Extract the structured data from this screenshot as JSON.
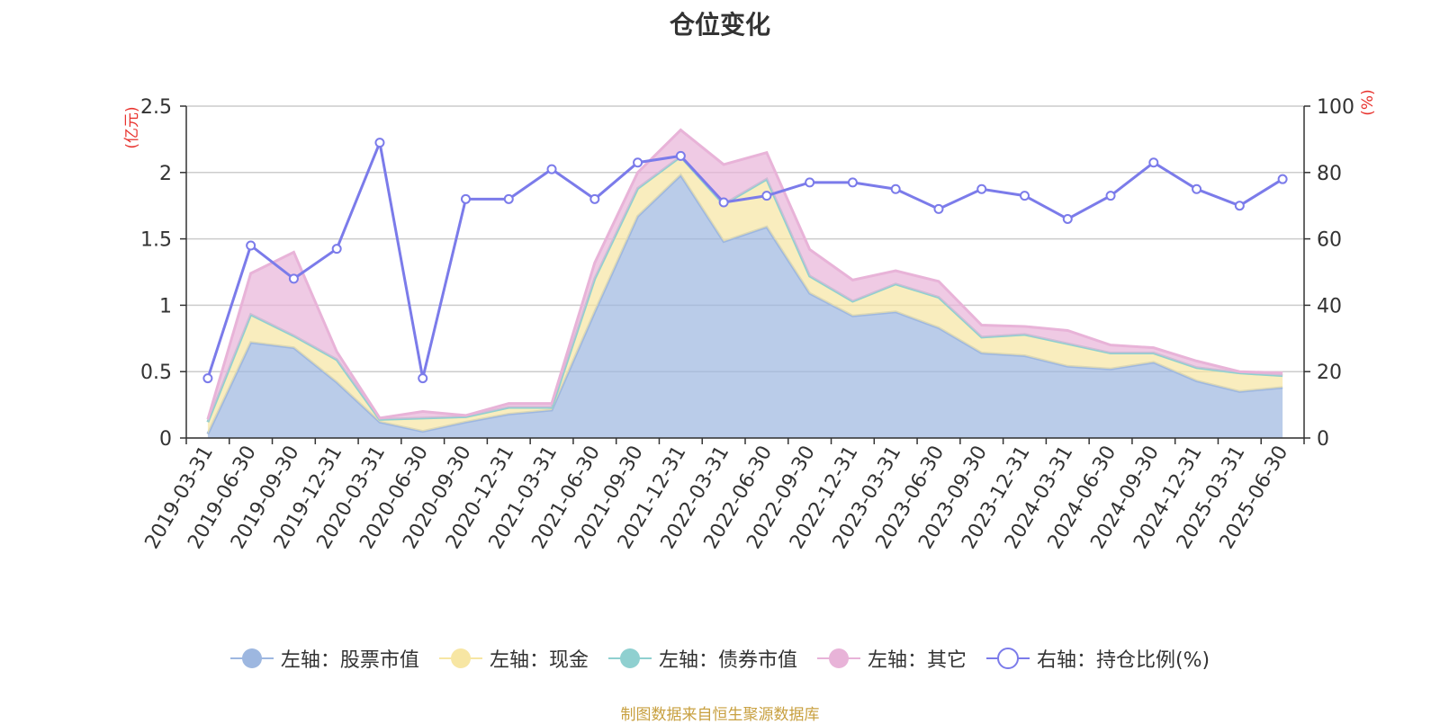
{
  "title": "仓位变化",
  "source_note": "制图数据来自恒生聚源数据库",
  "legend": [
    {
      "label": "左轴：股票市值",
      "color": "#9db7e0",
      "marker": "filled"
    },
    {
      "label": "左轴：现金",
      "color": "#f7e6a3",
      "marker": "filled"
    },
    {
      "label": "左轴：债券市值",
      "color": "#8fd0d0",
      "marker": "filled"
    },
    {
      "label": "左轴：其它",
      "color": "#e8b3d8",
      "marker": "filled"
    },
    {
      "label": "右轴：持仓比例(%)",
      "color": "#7b7bea",
      "marker": "hollow"
    }
  ],
  "chart_data": {
    "type": "area",
    "title": "仓位变化",
    "y_left_label": "(亿元)",
    "y_right_label": "(%)",
    "y_left_lim": [
      0,
      2.5
    ],
    "y_left_ticks": [
      "0",
      "0.5",
      "1",
      "1.5",
      "2",
      "2.5"
    ],
    "y_right_lim": [
      0,
      100
    ],
    "y_right_ticks": [
      "0",
      "20",
      "40",
      "60",
      "80",
      "100"
    ],
    "grid": true,
    "legend_position": "bottom",
    "x": [
      "2019-03-31",
      "2019-06-30",
      "2019-09-30",
      "2019-12-31",
      "2020-03-31",
      "2020-06-30",
      "2020-09-30",
      "2020-12-31",
      "2021-03-31",
      "2021-06-30",
      "2021-09-30",
      "2021-12-31",
      "2022-03-31",
      "2022-06-30",
      "2022-09-30",
      "2022-12-31",
      "2023-03-31",
      "2023-06-30",
      "2023-09-30",
      "2023-12-31",
      "2024-03-31",
      "2024-06-30",
      "2024-09-30",
      "2024-12-31",
      "2025-03-31",
      "2025-06-30"
    ],
    "series": [
      {
        "name": "左轴：股票市值",
        "axis": "left",
        "stacked": true,
        "color": "#9db7e0",
        "values": [
          0.03,
          0.72,
          0.68,
          0.42,
          0.12,
          0.05,
          0.12,
          0.18,
          0.21,
          0.95,
          1.67,
          1.98,
          1.48,
          1.59,
          1.09,
          0.92,
          0.95,
          0.83,
          0.64,
          0.62,
          0.54,
          0.52,
          0.57,
          0.43,
          0.35,
          0.38
        ]
      },
      {
        "name": "左轴：现金",
        "axis": "left",
        "stacked": true,
        "color": "#f7e6a3",
        "values": [
          0.09,
          0.21,
          0.09,
          0.17,
          0.02,
          0.1,
          0.04,
          0.05,
          0.02,
          0.25,
          0.21,
          0.14,
          0.28,
          0.36,
          0.13,
          0.11,
          0.21,
          0.23,
          0.12,
          0.16,
          0.17,
          0.12,
          0.07,
          0.1,
          0.14,
          0.09
        ]
      },
      {
        "name": "左轴：债券市值",
        "axis": "left",
        "stacked": true,
        "color": "#8fd0d0",
        "values": [
          0,
          0,
          0,
          0,
          0,
          0,
          0,
          0,
          0,
          0,
          0,
          0,
          0,
          0,
          0,
          0,
          0,
          0,
          0,
          0,
          0,
          0,
          0,
          0,
          0,
          0
        ]
      },
      {
        "name": "左轴：其它",
        "axis": "left",
        "stacked": true,
        "color": "#e8b3d8",
        "values": [
          0.02,
          0.31,
          0.63,
          0.06,
          0.01,
          0.05,
          0.01,
          0.03,
          0.03,
          0.12,
          0.12,
          0.2,
          0.3,
          0.2,
          0.2,
          0.16,
          0.1,
          0.12,
          0.09,
          0.06,
          0.1,
          0.06,
          0.04,
          0.05,
          0.01,
          0.02
        ]
      },
      {
        "name": "右轴：持仓比例(%)",
        "axis": "right",
        "type": "line",
        "color": "#7b7bea",
        "values": [
          18,
          58,
          48,
          57,
          89,
          18,
          72,
          72,
          81,
          72,
          83,
          85,
          71,
          73,
          77,
          77,
          75,
          69,
          75,
          73,
          66,
          73,
          83,
          75,
          70,
          78
        ]
      }
    ]
  }
}
